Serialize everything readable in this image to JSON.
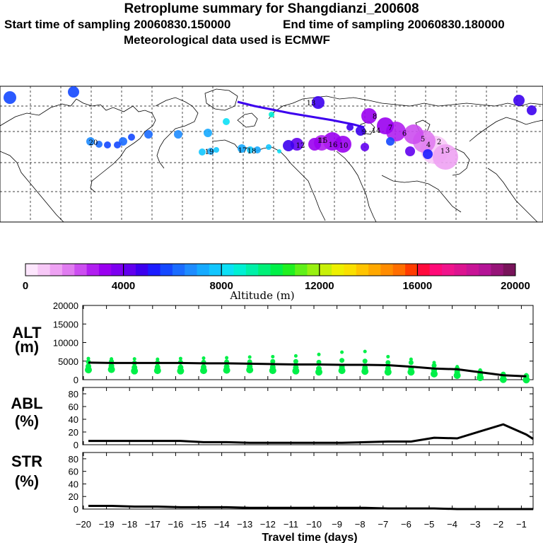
{
  "header": {
    "title": "Retroplume summary for Shangdianzi_200608",
    "start": "Start time of sampling 20060830.150000",
    "end": "End time of sampling 20060830.180000",
    "met": "Meteorological data used is ECMWF"
  },
  "colorbar": {
    "ticks": [
      "0",
      "4000",
      "8000",
      "12000",
      "16000",
      "20000"
    ],
    "label": "Altitude (m)",
    "colors": [
      "#fde6fd",
      "#f7c8f7",
      "#eea2f3",
      "#e07cf0",
      "#cc4ef0",
      "#b11ff0",
      "#9a00f0",
      "#7d00f0",
      "#6200ee",
      "#3c00ee",
      "#1c1cff",
      "#1448ff",
      "#1a6cff",
      "#1e8cff",
      "#16aaff",
      "#12c6ff",
      "#0ce0f6",
      "#00f0d4",
      "#00f0a8",
      "#00f078",
      "#00f048",
      "#20f020",
      "#60f018",
      "#98f010",
      "#c8f008",
      "#eef000",
      "#fae000",
      "#ffc400",
      "#ffa800",
      "#ff8c00",
      "#ff6e00",
      "#ff3c00",
      "#ff0a3c",
      "#ff0a78",
      "#f0148c",
      "#dc1490",
      "#c81496",
      "#b41496",
      "#961478",
      "#78145a"
    ]
  },
  "map_labels": [
    "1",
    "2",
    "3",
    "4",
    "5",
    "6",
    "7",
    "8",
    "9",
    "10",
    "11",
    "12",
    "13",
    "14",
    "15",
    "16",
    "17",
    "18",
    "19",
    "20"
  ],
  "panels": {
    "alt": {
      "label1": "ALT",
      "label2": "(m)",
      "ticks": [
        "20000",
        "15000",
        "10000",
        "5000",
        "0"
      ]
    },
    "abl": {
      "label1": "ABL",
      "label2": "(%)",
      "ticks": [
        "80",
        "60",
        "40",
        "20",
        "0"
      ]
    },
    "str": {
      "label1": "STR",
      "label2": "(%)",
      "ticks": [
        "80",
        "60",
        "40",
        "20",
        "0"
      ]
    }
  },
  "xaxis": {
    "ticks": [
      "−20",
      "−19",
      "−18",
      "−17",
      "−16",
      "−15",
      "−14",
      "−13",
      "−12",
      "−11",
      "−10",
      "−9",
      "−8",
      "−7",
      "−6",
      "−5",
      "−4",
      "−3",
      "−2",
      "−1"
    ],
    "label": "Travel time (days)"
  },
  "chart_data": [
    {
      "type": "line",
      "title": "ALT (m)",
      "x": [
        -20,
        -19,
        -18,
        -17,
        -16,
        -15,
        -14,
        -13,
        -12,
        -11,
        -10,
        -9,
        -8,
        -7,
        -6,
        -5,
        -4,
        -3,
        -2,
        -1
      ],
      "series": [
        {
          "name": "median altitude",
          "values": [
            4600,
            4500,
            4500,
            4500,
            4500,
            4400,
            4400,
            4300,
            4200,
            4100,
            4100,
            4000,
            4000,
            3900,
            3500,
            3000,
            2800,
            2000,
            1200,
            900
          ]
        }
      ],
      "spread": [
        [
          3600,
          4800,
          5700
        ],
        [
          3700,
          4900,
          5600
        ],
        [
          3300,
          4500,
          5600
        ],
        [
          3400,
          4600,
          5500
        ],
        [
          3300,
          4700,
          5700
        ],
        [
          3400,
          4700,
          5800
        ],
        [
          3500,
          4800,
          5900
        ],
        [
          3600,
          4800,
          6100
        ],
        [
          3400,
          4900,
          6200
        ],
        [
          3300,
          4900,
          6400
        ],
        [
          3000,
          4700,
          6800
        ],
        [
          3400,
          5200,
          7400
        ],
        [
          3200,
          5000,
          7600
        ],
        [
          3000,
          4600,
          6200
        ],
        [
          3000,
          4600,
          5500
        ],
        [
          2500,
          3800,
          4600
        ],
        [
          2100,
          3000,
          3500
        ],
        [
          1500,
          2200,
          2600
        ],
        [
          1000,
          1500,
          1600
        ],
        [
          900,
          1100,
          1300
        ]
      ],
      "xlabel": "Travel time (days)",
      "ylabel": "ALT (m)",
      "ylim": [
        0,
        20000
      ],
      "xlim": [
        -20,
        -0.5
      ]
    },
    {
      "type": "line",
      "title": "ABL (%)",
      "x": [
        -20,
        -19,
        -18,
        -17,
        -16,
        -15,
        -14,
        -13,
        -12,
        -11,
        -10,
        -9,
        -8,
        -7,
        -6,
        -5,
        -4,
        -3,
        -2,
        -1,
        -0.7
      ],
      "values": [
        6,
        6,
        6,
        6,
        6,
        4,
        4,
        3,
        3,
        3,
        3,
        3,
        4,
        5,
        5,
        11,
        10,
        21,
        32,
        16,
        9
      ],
      "xlabel": "Travel time (days)",
      "ylabel": "ABL (%)",
      "ylim": [
        0,
        90
      ]
    },
    {
      "type": "line",
      "title": "STR (%)",
      "x": [
        -20,
        -19,
        -18,
        -17,
        -16,
        -15,
        -14,
        -13,
        -12,
        -11,
        -10,
        -9,
        -8,
        -7,
        -6,
        -5,
        -4,
        -3,
        -2,
        -1,
        -0.7
      ],
      "values": [
        5,
        5,
        4,
        4,
        3,
        3,
        3,
        2,
        2,
        2,
        2,
        2,
        2,
        1,
        1,
        1,
        0,
        0,
        0,
        0,
        0
      ],
      "xlabel": "Travel time (days)",
      "ylabel": "STR (%)",
      "ylim": [
        0,
        90
      ]
    }
  ]
}
